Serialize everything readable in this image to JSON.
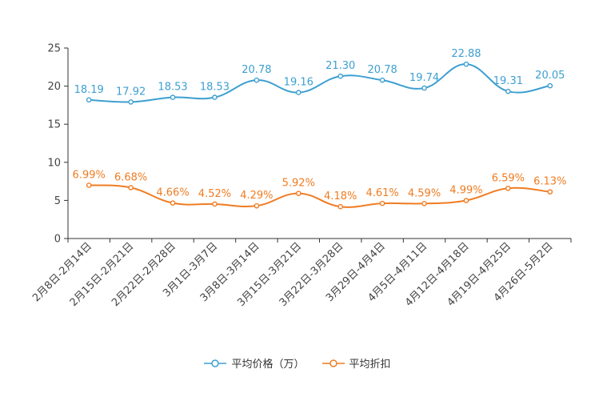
{
  "chart_data": {
    "type": "line",
    "categories": [
      "2月8日-2月14日",
      "2月15日-2月21日",
      "2月22日-2月28日",
      "3月1日-3月7日",
      "3月8日-3月14日",
      "3月15日-3月21日",
      "3月22日-3月28日",
      "3月29日-4月4日",
      "4月5日-4月11日",
      "4月12日-4月18日",
      "4月19日-4月25日",
      "4月26日-5月2日"
    ],
    "series": [
      {
        "name": "平均价格（万）",
        "color": "#3d9fd1",
        "values": [
          18.19,
          17.92,
          18.53,
          18.53,
          20.78,
          19.16,
          21.3,
          20.78,
          19.74,
          22.88,
          19.31,
          20.05
        ],
        "labels": [
          "18.19",
          "17.92",
          "18.53",
          "18.53",
          "20.78",
          "19.16",
          "21.30",
          "20.78",
          "19.74",
          "22.88",
          "19.31",
          "20.05"
        ]
      },
      {
        "name": "平均折扣",
        "color": "#f07c22",
        "values": [
          6.99,
          6.68,
          4.66,
          4.52,
          4.29,
          5.92,
          4.18,
          4.61,
          4.59,
          4.99,
          6.59,
          6.13
        ],
        "labels": [
          "6.99%",
          "6.68%",
          "4.66%",
          "4.52%",
          "4.29%",
          "5.92%",
          "4.18%",
          "4.61%",
          "4.59%",
          "4.99%",
          "6.59%",
          "6.13%"
        ]
      }
    ],
    "yticks": [
      0,
      5,
      10,
      15,
      20,
      25
    ],
    "ylim": [
      0,
      25
    ],
    "title": "",
    "xlabel": "",
    "ylabel": "",
    "legend_position": "bottom-center",
    "grid": false
  }
}
